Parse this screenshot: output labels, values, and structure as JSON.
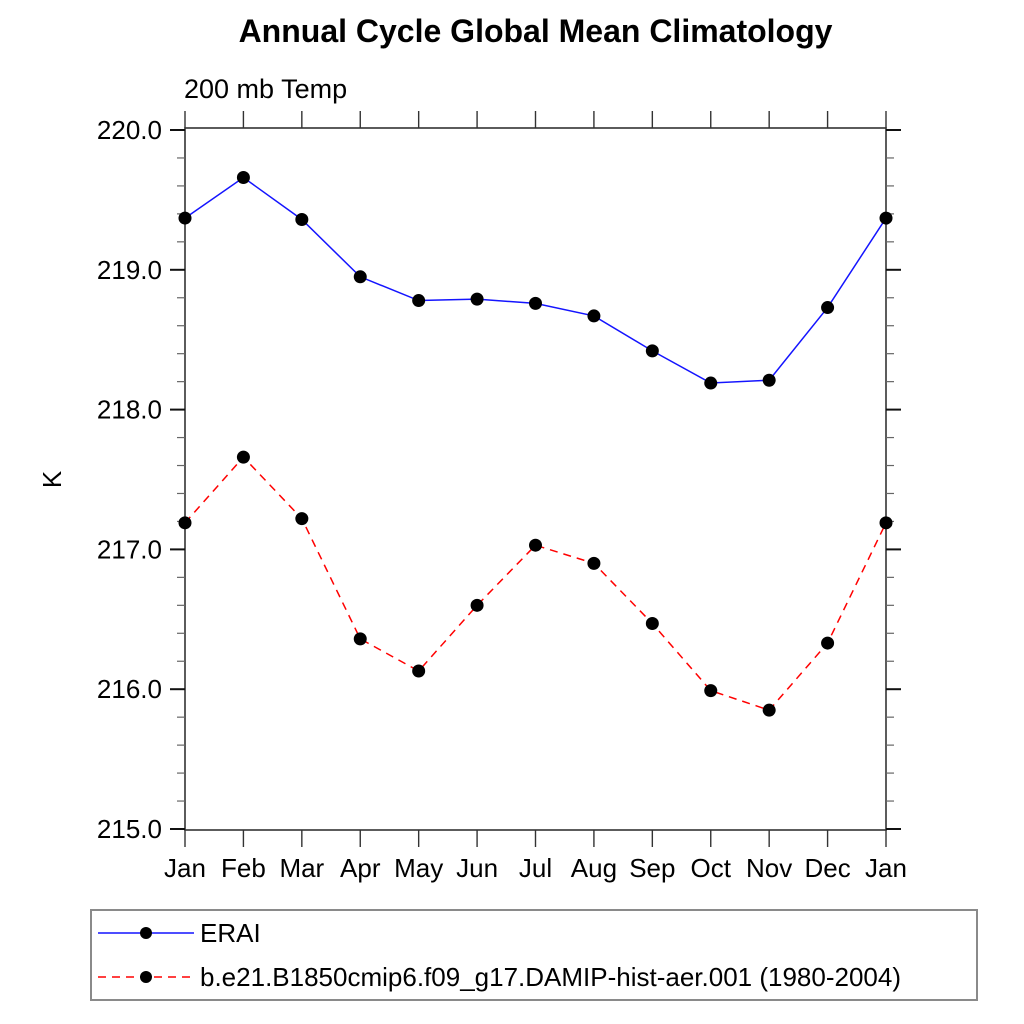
{
  "page": {
    "background": "#ffffff"
  },
  "chart_data": {
    "type": "line",
    "title": "Annual Cycle Global Mean Climatology",
    "subtitle": "200 mb Temp",
    "xlabel": "",
    "ylabel": "K",
    "categories": [
      "Jan",
      "Feb",
      "Mar",
      "Apr",
      "May",
      "Jun",
      "Jul",
      "Aug",
      "Sep",
      "Oct",
      "Nov",
      "Dec",
      "Jan"
    ],
    "ylim": [
      215.0,
      220.0
    ],
    "y_major_ticks": [
      215.0,
      216.0,
      217.0,
      218.0,
      219.0,
      220.0
    ],
    "y_tick_labels": [
      "215.0",
      "216.0",
      "217.0",
      "218.0",
      "219.0",
      "220.0"
    ],
    "y_minor_interval": 0.2,
    "grid": false,
    "legend_position": "bottom-outside",
    "axis_color": "#333333",
    "series": [
      {
        "name": "ERAI",
        "line_color": "#1414ff",
        "line_style": "solid",
        "marker": "filled-circle",
        "marker_color": "#000000",
        "values": [
          219.37,
          219.66,
          219.36,
          218.95,
          218.78,
          218.79,
          218.76,
          218.67,
          218.42,
          218.19,
          218.21,
          218.73,
          219.37
        ]
      },
      {
        "name": "b.e21.B1850cmip6.f09_g17.DAMIP-hist-aer.001 (1980-2004)",
        "line_color": "#ff0000",
        "line_style": "dashed",
        "marker": "filled-circle",
        "marker_color": "#000000",
        "values": [
          217.19,
          217.66,
          217.22,
          216.36,
          216.13,
          216.6,
          217.03,
          216.9,
          216.47,
          215.99,
          215.85,
          216.33,
          217.19
        ]
      }
    ]
  }
}
